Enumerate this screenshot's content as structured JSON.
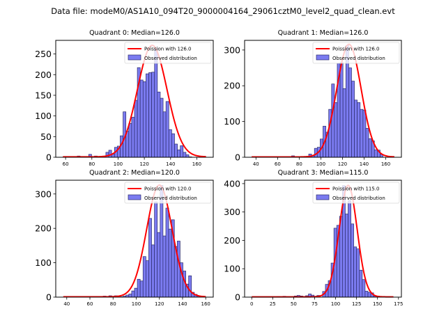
{
  "suptitle": "Data file: modeM0/AS1A10_094T20_9000004164_29061cztM0_level2_quad_clean.evt",
  "chart_data": [
    {
      "type": "bar",
      "title": "Quadrant 0: Median=126.0",
      "xlabel": "",
      "ylabel": "",
      "xlim": [
        52.5,
        172.5
      ],
      "ylim": [
        0,
        283
      ],
      "xticks": [
        60,
        80,
        100,
        120,
        140,
        160
      ],
      "yticks": [
        0,
        50,
        100,
        150,
        200,
        250
      ],
      "bins_start": 58,
      "bin_width": 2.18,
      "values": [
        1,
        1,
        1,
        1,
        0,
        3,
        0,
        0,
        1,
        7,
        0,
        3,
        0,
        0,
        2,
        12,
        17,
        8,
        24,
        27,
        52,
        110,
        63,
        82,
        97,
        138,
        217,
        187,
        183,
        202,
        205,
        206,
        265,
        158,
        143,
        110,
        135,
        67,
        57,
        32,
        18,
        28,
        12,
        6,
        1,
        0,
        0,
        0,
        0,
        0
      ],
      "legend": [
        "Poission with 126.0",
        "Observed distribution"
      ],
      "legend_position": "upper right",
      "poisson_mean": 126.0,
      "poisson_peak": 270
    },
    {
      "type": "bar",
      "title": "Quadrant 1: Median=126.0",
      "xlabel": "",
      "ylabel": "",
      "xlim": [
        29.5,
        174.5
      ],
      "ylim": [
        0,
        327
      ],
      "xticks": [
        40,
        60,
        80,
        100,
        120,
        140,
        160
      ],
      "yticks": [
        0,
        100,
        200,
        300
      ],
      "bins_start": 36,
      "bin_width": 2.64,
      "values": [
        0,
        0,
        0,
        0,
        0,
        0,
        0,
        0,
        0,
        0,
        0,
        0,
        2,
        0,
        4,
        0,
        0,
        0,
        0,
        0,
        9,
        4,
        25,
        28,
        51,
        87,
        70,
        134,
        205,
        153,
        263,
        265,
        192,
        313,
        250,
        213,
        160,
        153,
        134,
        132,
        81,
        52,
        46,
        21,
        20,
        8,
        0,
        0,
        0,
        0
      ],
      "legend": [
        "Poission with 126.0",
        "Observed distribution"
      ],
      "legend_position": "upper right",
      "poisson_mean": 126.0,
      "poisson_peak": 315
    },
    {
      "type": "bar",
      "title": "Quadrant 2: Median=120.0",
      "xlabel": "",
      "ylabel": "",
      "xlim": [
        30.5,
        166.5
      ],
      "ylim": [
        0,
        340
      ],
      "xticks": [
        40,
        60,
        80,
        100,
        120,
        140,
        160
      ],
      "yticks": [
        0,
        100,
        200,
        300
      ],
      "bins_start": 37,
      "bin_width": 2.46,
      "values": [
        0,
        0,
        0,
        0,
        0,
        0,
        0,
        0,
        0,
        0,
        1,
        0,
        2,
        0,
        3,
        0,
        4,
        0,
        4,
        0,
        1,
        3,
        6,
        9,
        18,
        26,
        52,
        47,
        118,
        106,
        229,
        152,
        277,
        188,
        325,
        178,
        259,
        198,
        225,
        147,
        163,
        100,
        76,
        38,
        62,
        14,
        8,
        3,
        0,
        0
      ],
      "legend": [
        "Poission with 120.0",
        "Observed distribution"
      ],
      "legend_position": "upper right",
      "poisson_mean": 120.0,
      "poisson_peak": 325
    },
    {
      "type": "bar",
      "title": "Quadrant 3: Median=115.0",
      "xlabel": "",
      "ylabel": "",
      "xlim": [
        -8.5,
        178.5
      ],
      "ylim": [
        0,
        412
      ],
      "xticks": [
        0,
        25,
        50,
        75,
        100,
        125,
        150,
        175
      ],
      "yticks": [
        0,
        100,
        200,
        300,
        400
      ],
      "bins_start": 0,
      "bin_width": 3.38,
      "values": [
        0,
        0,
        0,
        0,
        0,
        1,
        0,
        0,
        0,
        2,
        0,
        3,
        0,
        0,
        0,
        4,
        6,
        4,
        2,
        5,
        11,
        7,
        3,
        6,
        0,
        20,
        45,
        58,
        120,
        243,
        253,
        285,
        393,
        293,
        340,
        258,
        177,
        170,
        95,
        62,
        21,
        17,
        15,
        4,
        4,
        0,
        0,
        0,
        0,
        0
      ],
      "legend": [
        "Poission with 115.0",
        "Observed distribution"
      ],
      "legend_position": "upper right",
      "poisson_mean": 115.0,
      "poisson_peak": 393
    }
  ],
  "colors": {
    "bar_fill": "#7b7bf0",
    "bar_edge": "#2a2a6a",
    "poisson_line": "#ff0000",
    "axes": "#000000"
  }
}
